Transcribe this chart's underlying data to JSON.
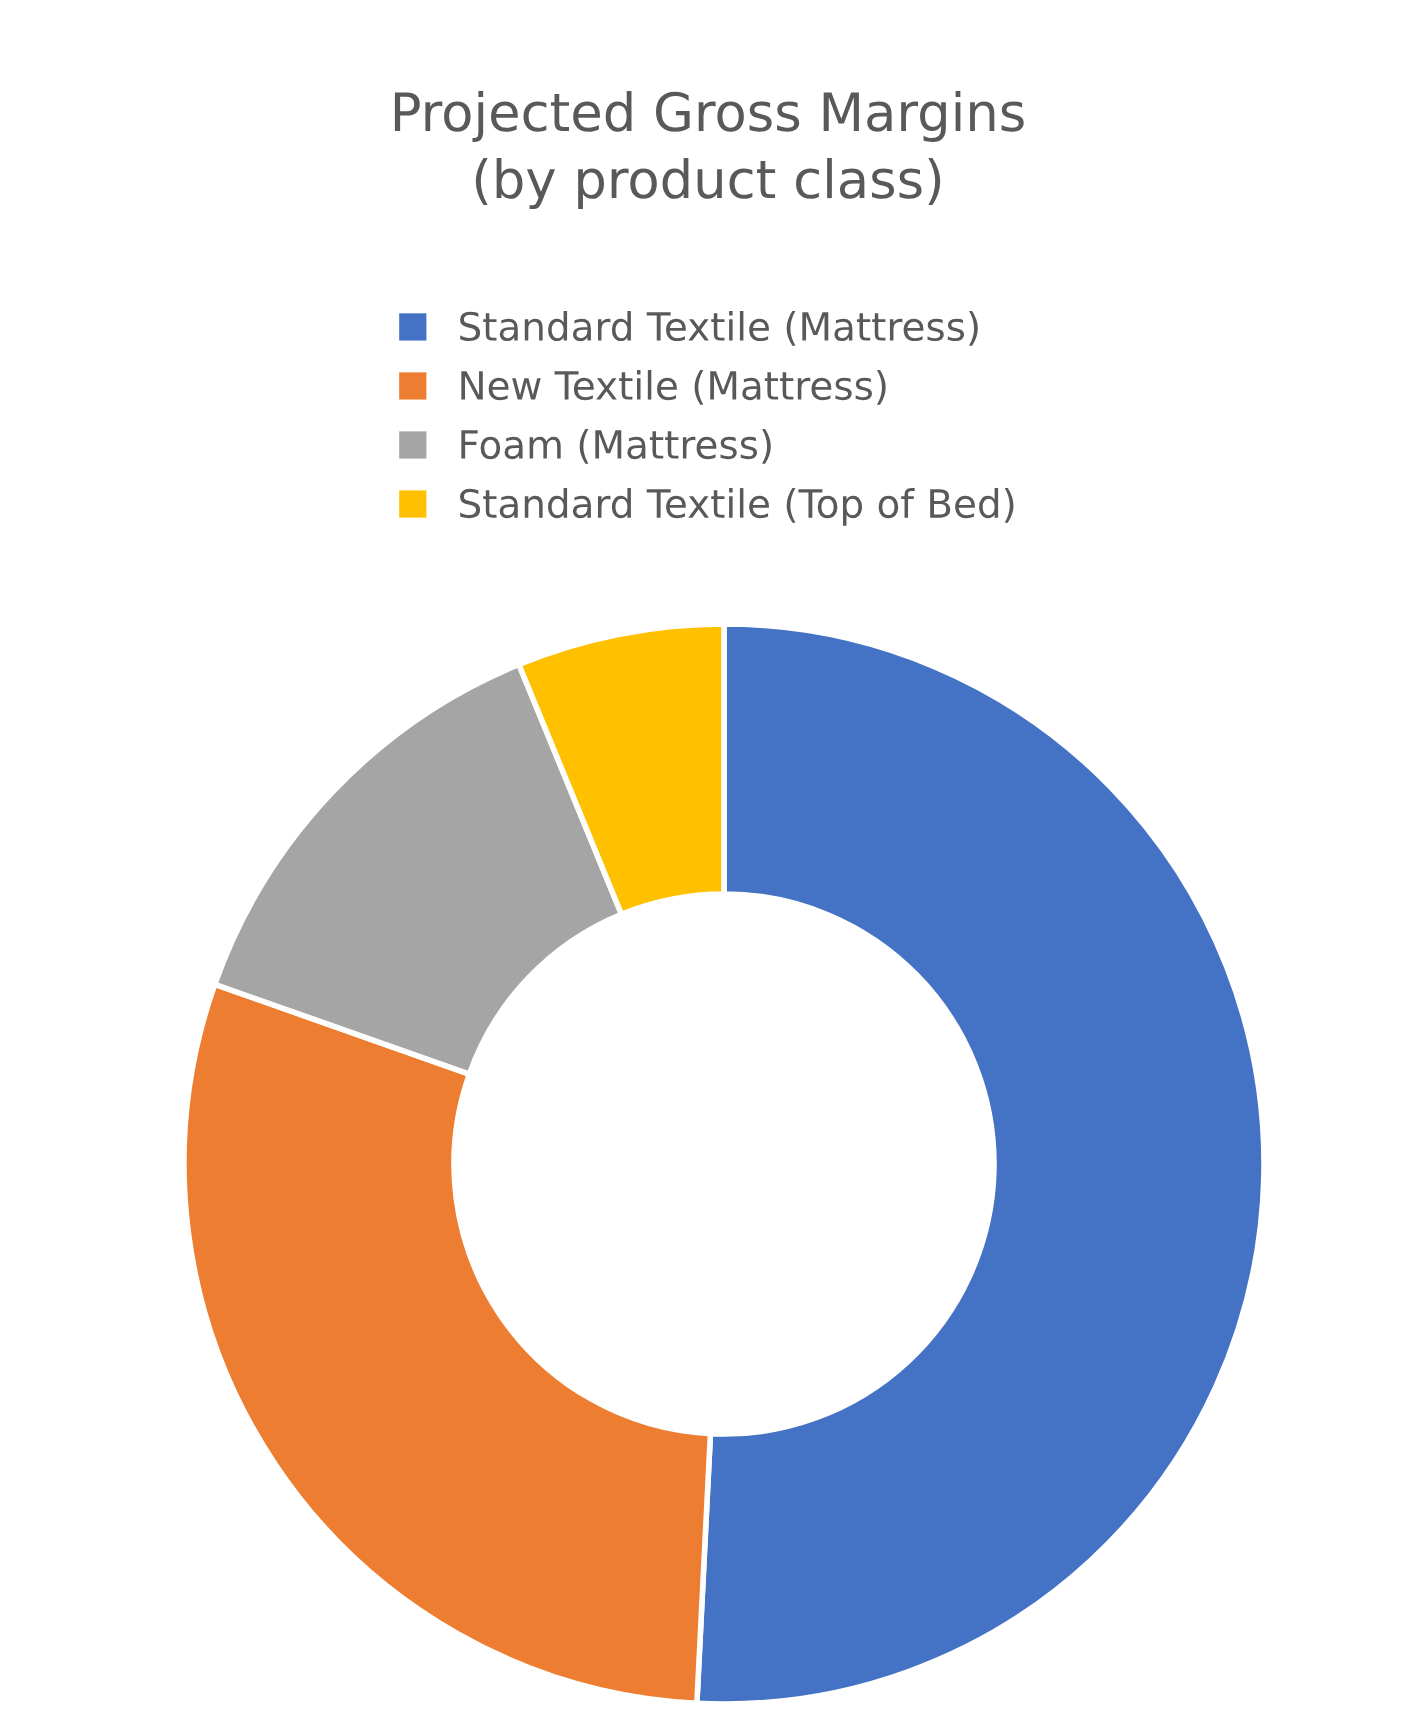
{
  "chart_data": {
    "type": "donut",
    "title": "Projected Gross Margins\n(by product class)",
    "categories": [
      "Standard Textile (Mattress)",
      "New Textile (Mattress)",
      "Foam (Mattress)",
      "Standard Textile (Top of Bed)"
    ],
    "values": [
      50.8,
      29.6,
      13.4,
      6.2
    ],
    "colors": [
      "#4472c4",
      "#ed7d31",
      "#a5a5a5",
      "#ffc000"
    ],
    "legend": "top"
  }
}
